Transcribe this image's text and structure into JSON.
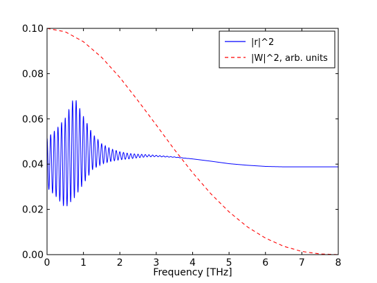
{
  "chart_data": {
    "type": "line",
    "title": "",
    "xlabel": "Frequency [THz]",
    "ylabel": "",
    "xlim": [
      0,
      8
    ],
    "ylim": [
      0,
      0.1
    ],
    "x_ticks": [
      "0",
      "1",
      "2",
      "3",
      "4",
      "5",
      "6",
      "7",
      "8"
    ],
    "y_ticks": [
      "0.00",
      "0.02",
      "0.04",
      "0.06",
      "0.08",
      "0.10"
    ],
    "grid": false,
    "legend_position": "top-right",
    "series": [
      {
        "name": "|r|^2",
        "color": "#0000ff",
        "style": "solid",
        "x": [
          0,
          0.25,
          0.5,
          0.75,
          1.0,
          1.25,
          1.5,
          1.75,
          2.0,
          2.25,
          2.5,
          2.75,
          3.0,
          3.5,
          4.0,
          4.5,
          5.0,
          5.5,
          6.0,
          6.5,
          7.0,
          7.5,
          8.0
        ],
        "y": [
          0.0405,
          0.0405,
          0.0405,
          0.0475,
          0.0462,
          0.0455,
          0.0445,
          0.044,
          0.0437,
          0.0435,
          0.0436,
          0.0437,
          0.0436,
          0.0431,
          0.0423,
          0.0413,
          0.0402,
          0.0395,
          0.039,
          0.0388,
          0.0388,
          0.0388,
          0.0388
        ],
        "oscillation_amplitude": [
          0.011,
          0.015,
          0.02,
          0.0225,
          0.015,
          0.008,
          0.0045,
          0.0028,
          0.0018,
          0.0012,
          0.0008,
          0.0005,
          0.0003,
          0.0001,
          0,
          0,
          0,
          0,
          0,
          0,
          0,
          0,
          0
        ],
        "oscillation_period": 0.1
      },
      {
        "name": "|W|^2, arb. units",
        "color": "#ff0000",
        "style": "dashed",
        "x": [
          0,
          0.5,
          1.0,
          1.5,
          2.0,
          2.5,
          3.0,
          3.5,
          4.0,
          4.5,
          5.0,
          5.5,
          6.0,
          6.5,
          7.0,
          7.5,
          8.0
        ],
        "y": [
          0.1,
          0.0985,
          0.0941,
          0.0872,
          0.0783,
          0.068,
          0.0573,
          0.0464,
          0.0362,
          0.0269,
          0.0189,
          0.0123,
          0.0073,
          0.0037,
          0.0014,
          0.0003,
          0.0
        ]
      }
    ]
  }
}
